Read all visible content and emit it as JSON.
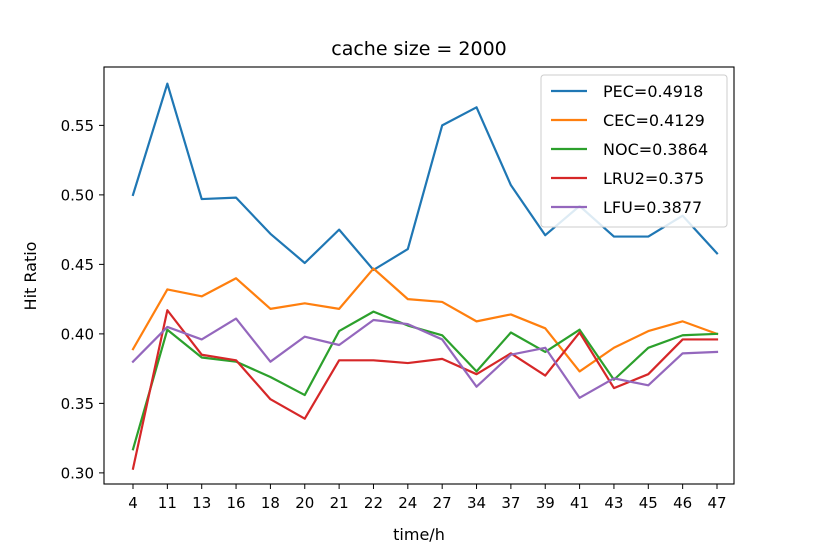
{
  "chart_data": {
    "type": "line",
    "title": "cache size = 2000",
    "xlabel": "time/h",
    "ylabel": "Hit Ratio",
    "categories": [
      "4",
      "11",
      "13",
      "16",
      "18",
      "20",
      "21",
      "22",
      "24",
      "27",
      "34",
      "37",
      "39",
      "41",
      "43",
      "45",
      "46",
      "47"
    ],
    "ylim": [
      0.292,
      0.592
    ],
    "yticks": [
      "0.30",
      "0.35",
      "0.40",
      "0.45",
      "0.50",
      "0.55"
    ],
    "grid": false,
    "legend_position": "top-right",
    "series": [
      {
        "name": "PEC=0.4918",
        "color": "#1f77b4",
        "values": [
          0.5,
          0.58,
          0.497,
          0.498,
          0.472,
          0.451,
          0.475,
          0.446,
          0.461,
          0.55,
          0.563,
          0.507,
          0.471,
          0.492,
          0.47,
          0.47,
          0.485,
          0.458
        ]
      },
      {
        "name": "CEC=0.4129",
        "color": "#ff7f0e",
        "values": [
          0.389,
          0.432,
          0.427,
          0.44,
          0.418,
          0.422,
          0.418,
          0.447,
          0.425,
          0.423,
          0.409,
          0.414,
          0.404,
          0.373,
          0.39,
          0.402,
          0.409,
          0.4
        ]
      },
      {
        "name": "NOC=0.3864",
        "color": "#2ca02c",
        "values": [
          0.317,
          0.403,
          0.383,
          0.38,
          0.369,
          0.356,
          0.402,
          0.416,
          0.406,
          0.399,
          0.373,
          0.401,
          0.387,
          0.403,
          0.367,
          0.39,
          0.399,
          0.4
        ]
      },
      {
        "name": "LRU2=0.375",
        "color": "#d62728",
        "values": [
          0.303,
          0.417,
          0.385,
          0.381,
          0.353,
          0.339,
          0.381,
          0.381,
          0.379,
          0.382,
          0.371,
          0.386,
          0.37,
          0.401,
          0.361,
          0.371,
          0.396,
          0.396
        ]
      },
      {
        "name": "LFU=0.3877",
        "color": "#9467bd",
        "values": [
          0.38,
          0.405,
          0.396,
          0.411,
          0.38,
          0.398,
          0.392,
          0.41,
          0.407,
          0.396,
          0.362,
          0.385,
          0.39,
          0.354,
          0.368,
          0.363,
          0.386,
          0.387
        ]
      }
    ]
  }
}
